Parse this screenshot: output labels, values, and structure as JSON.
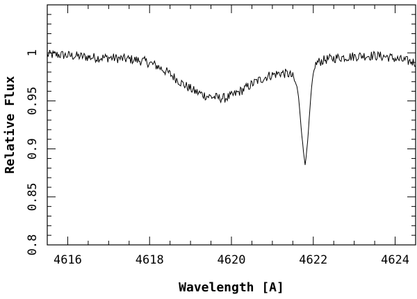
{
  "chart_data": {
    "type": "line",
    "title": "",
    "xlabel": "Wavelength [A]",
    "ylabel": "Relative Flux",
    "xlim": [
      4615.5,
      4624.5
    ],
    "ylim": [
      0.8,
      1.05
    ],
    "grid": false,
    "legend": "none",
    "line_color": "#000000",
    "x_ticks": {
      "major": [
        4616,
        4618,
        4620,
        4622,
        4624
      ],
      "major_labels": [
        "4616",
        "4618",
        "4620",
        "4622",
        "4624"
      ],
      "minor_step": 0.5
    },
    "y_ticks": {
      "major": [
        0.8,
        0.85,
        0.9,
        0.95,
        1.0
      ],
      "major_labels": [
        "0.8",
        "0.85",
        "0.9",
        "0.95",
        "1"
      ],
      "minor_step": 0.01
    },
    "series": [
      {
        "x": [
          4615.5,
          4615.8,
          4616.1,
          4616.4,
          4616.7,
          4617.0,
          4617.3,
          4617.6,
          4617.9,
          4618.2,
          4618.5,
          4618.8,
          4619.1,
          4619.4,
          4619.7,
          4619.85,
          4620.0,
          4620.3,
          4620.6,
          4620.9,
          4621.2,
          4621.4,
          4621.5,
          4621.6,
          4621.65,
          4621.7,
          4621.75,
          4621.8,
          4621.85,
          4621.9,
          4621.95,
          4622.0,
          4622.05,
          4622.1,
          4622.3,
          4622.6,
          4622.9,
          4623.2,
          4623.5,
          4623.8,
          4624.1,
          4624.5
        ],
        "y": [
          0.998,
          0.998,
          0.997,
          0.996,
          0.995,
          0.995,
          0.994,
          0.993,
          0.991,
          0.986,
          0.978,
          0.968,
          0.96,
          0.955,
          0.953,
          0.953,
          0.955,
          0.962,
          0.97,
          0.976,
          0.979,
          0.978,
          0.975,
          0.965,
          0.95,
          0.925,
          0.9,
          0.885,
          0.9,
          0.93,
          0.96,
          0.978,
          0.987,
          0.99,
          0.993,
          0.995,
          0.996,
          0.997,
          0.997,
          0.996,
          0.993,
          0.99
        ],
        "noise_amplitude": 0.005
      }
    ]
  }
}
